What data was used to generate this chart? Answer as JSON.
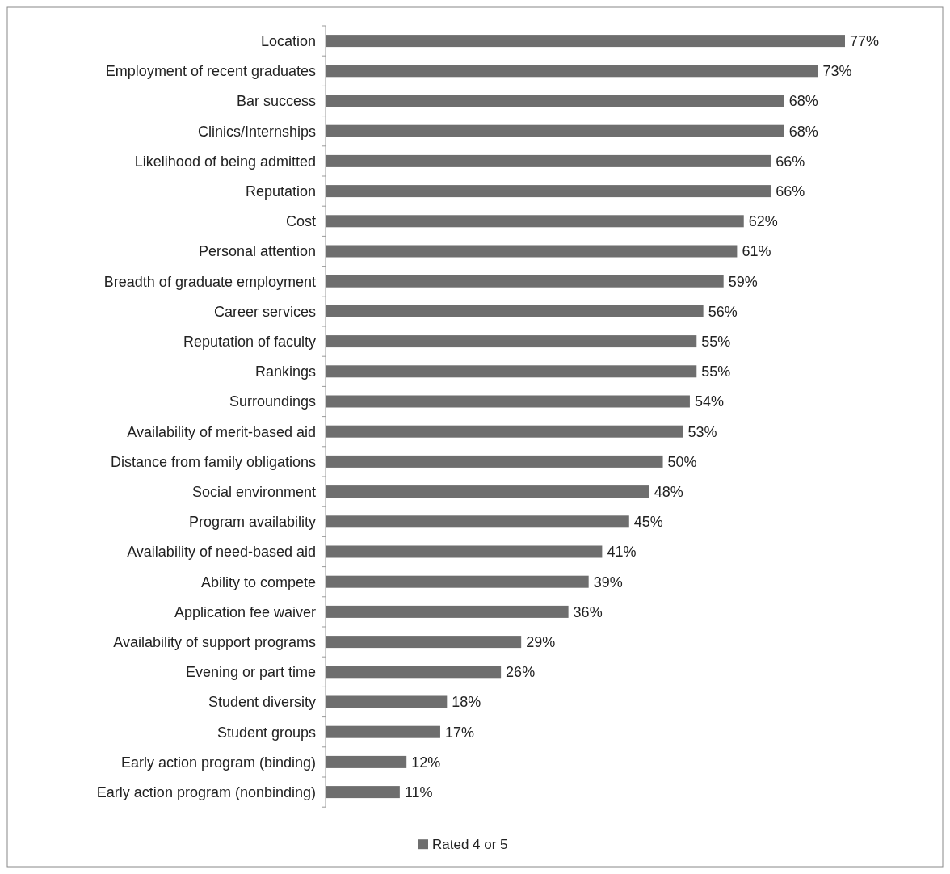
{
  "chart_data": {
    "type": "bar",
    "orientation": "horizontal",
    "categories": [
      "Location",
      "Employment of recent graduates",
      "Bar success",
      "Clinics/Internships",
      "Likelihood of being admitted",
      "Reputation",
      "Cost",
      "Personal attention",
      "Breadth of graduate employment",
      "Career services",
      "Reputation of faculty",
      "Rankings",
      "Surroundings",
      "Availability of merit-based aid",
      "Distance from family obligations",
      "Social environment",
      "Program availability",
      "Availability of need-based aid",
      "Ability to compete",
      "Application fee waiver",
      "Availability of support programs",
      "Evening or part time",
      "Student diversity",
      "Student groups",
      "Early action program (binding)",
      "Early action program (nonbinding)"
    ],
    "series": [
      {
        "name": "Rated 4 or 5",
        "color": "#6e6e6e",
        "values": [
          77,
          73,
          68,
          68,
          66,
          66,
          62,
          61,
          59,
          56,
          55,
          55,
          54,
          53,
          50,
          48,
          45,
          41,
          39,
          36,
          29,
          26,
          18,
          17,
          12,
          11
        ],
        "value_labels": [
          "77%",
          "73%",
          "68%",
          "68%",
          "66%",
          "66%",
          "62%",
          "61%",
          "59%",
          "56%",
          "55%",
          "55%",
          "54%",
          "53%",
          "50%",
          "48%",
          "45%",
          "41%",
          "39%",
          "36%",
          "29%",
          "26%",
          "18%",
          "17%",
          "12%",
          "11%"
        ]
      }
    ],
    "legend": "bottom",
    "grid": false
  }
}
